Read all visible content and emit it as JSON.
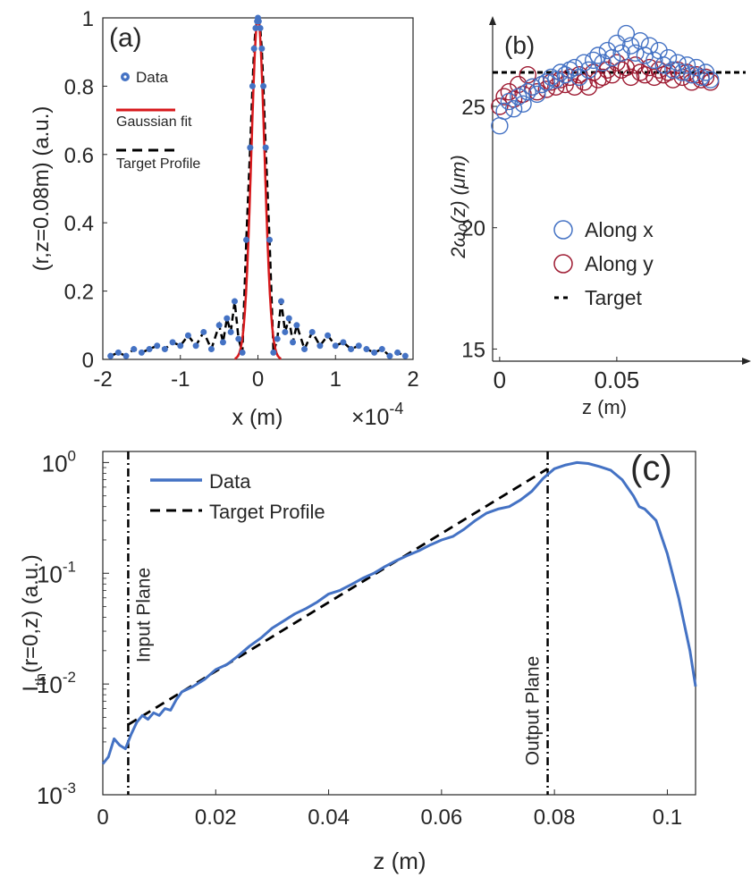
{
  "chart_data": [
    {
      "panel_label": "(a)",
      "type": "line",
      "xlabel": "x (m)",
      "x_exponent_label": "×10",
      "x_exponent": "-4",
      "ylabel": "(r,z=0.08m) (a.u.)",
      "xlim": [
        -2,
        2
      ],
      "ylim": [
        0,
        1
      ],
      "xticks": [
        "-2",
        "-1",
        "0",
        "1",
        "2"
      ],
      "yticks": [
        "0",
        "0.2",
        "0.4",
        "0.6",
        "0.8",
        "1"
      ],
      "legend": [
        "Data",
        "Gaussian fit",
        "Target Profile"
      ],
      "legend_position": "top-left",
      "series": [
        {
          "name": "Data",
          "style": "circle-markers",
          "color": "#4472C4",
          "x": [
            -1.9,
            -1.8,
            -1.7,
            -1.6,
            -1.5,
            -1.4,
            -1.3,
            -1.2,
            -1.1,
            -1.0,
            -0.9,
            -0.8,
            -0.7,
            -0.6,
            -0.5,
            -0.45,
            -0.4,
            -0.35,
            -0.3,
            -0.25,
            -0.2,
            -0.15,
            -0.1,
            -0.07,
            -0.05,
            -0.03,
            -0.01,
            0,
            0.01,
            0.03,
            0.05,
            0.07,
            0.1,
            0.15,
            0.2,
            0.25,
            0.3,
            0.35,
            0.4,
            0.45,
            0.5,
            0.6,
            0.7,
            0.8,
            0.9,
            1.0,
            1.1,
            1.2,
            1.3,
            1.4,
            1.5,
            1.6,
            1.7,
            1.8,
            1.9
          ],
          "y": [
            0.01,
            0.02,
            0.01,
            0.03,
            0.02,
            0.03,
            0.04,
            0.03,
            0.05,
            0.04,
            0.07,
            0.04,
            0.08,
            0.03,
            0.1,
            0.05,
            0.12,
            0.08,
            0.17,
            0.06,
            0.02,
            0.35,
            0.62,
            0.8,
            0.91,
            0.97,
            0.99,
            1.0,
            0.99,
            0.97,
            0.91,
            0.8,
            0.62,
            0.35,
            0.02,
            0.06,
            0.17,
            0.08,
            0.12,
            0.05,
            0.1,
            0.03,
            0.08,
            0.04,
            0.07,
            0.04,
            0.05,
            0.03,
            0.04,
            0.03,
            0.02,
            0.03,
            0.01,
            0.02,
            0.01
          ]
        },
        {
          "name": "Gaussian fit",
          "style": "solid",
          "color": "#D7191C"
        },
        {
          "name": "Target Profile",
          "style": "dashed",
          "color": "#000000"
        }
      ]
    },
    {
      "panel_label": "(b)",
      "type": "scatter",
      "xlabel": "z (m)",
      "ylabel": "2ω₀(z) (μm)",
      "xlim": [
        -0.003,
        0.105
      ],
      "ylim": [
        14.5,
        28.5
      ],
      "xticks": [
        "0",
        "0.05"
      ],
      "yticks": [
        "15",
        "20",
        "25"
      ],
      "legend": [
        "Along x",
        "Along y",
        "Target"
      ],
      "legend_position": "lower-left",
      "series": [
        {
          "name": "Along x",
          "style": "open-circle",
          "color": "#4472C4",
          "x": [
            0.0,
            0.002,
            0.004,
            0.006,
            0.008,
            0.01,
            0.012,
            0.014,
            0.016,
            0.018,
            0.02,
            0.022,
            0.024,
            0.026,
            0.028,
            0.03,
            0.032,
            0.034,
            0.036,
            0.038,
            0.04,
            0.042,
            0.044,
            0.046,
            0.048,
            0.05,
            0.052,
            0.054,
            0.056,
            0.058,
            0.06,
            0.062,
            0.064,
            0.066,
            0.068,
            0.07,
            0.072,
            0.074,
            0.076,
            0.078,
            0.08,
            0.082,
            0.084,
            0.086,
            0.088,
            0.09
          ],
          "y": [
            24.2,
            24.8,
            25.2,
            24.9,
            25.4,
            25.1,
            25.6,
            25.8,
            25.5,
            25.9,
            26.0,
            26.2,
            26.1,
            26.4,
            26.3,
            26.5,
            26.6,
            26.2,
            26.8,
            26.5,
            26.9,
            27.1,
            26.8,
            27.3,
            27.0,
            27.6,
            27.2,
            28.0,
            27.5,
            27.2,
            27.7,
            27.1,
            27.5,
            26.9,
            27.3,
            26.7,
            27.0,
            26.5,
            26.8,
            26.4,
            26.7,
            26.3,
            26.6,
            26.2,
            26.4,
            26.1
          ]
        },
        {
          "name": "Along y",
          "style": "open-circle",
          "color": "#9E1B32",
          "x": [
            0.0,
            0.002,
            0.004,
            0.006,
            0.008,
            0.01,
            0.012,
            0.014,
            0.016,
            0.018,
            0.02,
            0.022,
            0.024,
            0.026,
            0.028,
            0.03,
            0.032,
            0.034,
            0.036,
            0.038,
            0.04,
            0.042,
            0.044,
            0.046,
            0.048,
            0.05,
            0.052,
            0.054,
            0.056,
            0.058,
            0.06,
            0.062,
            0.064,
            0.066,
            0.068,
            0.07,
            0.072,
            0.074,
            0.076,
            0.078,
            0.08,
            0.082,
            0.084,
            0.086,
            0.088,
            0.09
          ],
          "y": [
            25.0,
            25.4,
            25.6,
            25.3,
            25.9,
            25.5,
            26.3,
            25.8,
            25.6,
            25.9,
            25.7,
            26.0,
            25.8,
            26.1,
            25.9,
            26.2,
            25.8,
            26.3,
            26.0,
            25.8,
            26.4,
            26.1,
            26.2,
            26.5,
            26.3,
            26.8,
            26.5,
            26.6,
            26.2,
            26.7,
            26.4,
            26.3,
            26.6,
            26.2,
            26.5,
            26.3,
            26.4,
            26.1,
            26.5,
            26.2,
            26.4,
            26.0,
            26.3,
            26.1,
            26.2,
            26.0
          ]
        },
        {
          "name": "Target",
          "style": "dotted",
          "color": "#000000",
          "y": 26.4
        }
      ]
    },
    {
      "panel_label": "(c)",
      "type": "line",
      "xlabel": "z (m)",
      "ylabel_main": "I",
      "ylabel_sub": "th",
      "ylabel_rest": "(r=0,z) (a.u.)",
      "xlim": [
        0,
        0.105
      ],
      "ylim_log10": [
        -3,
        0.1
      ],
      "yscale": "log",
      "xticks": [
        "0",
        "0.02",
        "0.04",
        "0.06",
        "0.08",
        "0.1"
      ],
      "yticks": [
        {
          "base": "10",
          "exp": "-3"
        },
        {
          "base": "10",
          "exp": "-2"
        },
        {
          "base": "10",
          "exp": "-1"
        },
        {
          "base": "10",
          "exp": "0"
        }
      ],
      "legend": [
        "Data",
        "Target Profile"
      ],
      "legend_position": "top-left",
      "annotations": [
        "Input Plane",
        "Output Plane"
      ],
      "input_plane_z": 0.0045,
      "output_plane_z": 0.0788,
      "series": [
        {
          "name": "Data",
          "style": "solid",
          "color": "#4472C4",
          "x": [
            0,
            0.001,
            0.002,
            0.003,
            0.004,
            0.005,
            0.006,
            0.007,
            0.008,
            0.009,
            0.01,
            0.011,
            0.012,
            0.013,
            0.014,
            0.016,
            0.018,
            0.02,
            0.022,
            0.024,
            0.026,
            0.028,
            0.03,
            0.032,
            0.034,
            0.036,
            0.038,
            0.04,
            0.042,
            0.044,
            0.046,
            0.048,
            0.05,
            0.052,
            0.054,
            0.056,
            0.058,
            0.06,
            0.062,
            0.064,
            0.066,
            0.068,
            0.07,
            0.072,
            0.074,
            0.076,
            0.078,
            0.08,
            0.082,
            0.084,
            0.086,
            0.088,
            0.09,
            0.092,
            0.094,
            0.095,
            0.096,
            0.098,
            0.1,
            0.102,
            0.104,
            0.105
          ],
          "y": [
            0.0019,
            0.0022,
            0.0032,
            0.0028,
            0.0026,
            0.0035,
            0.0045,
            0.0052,
            0.0048,
            0.0055,
            0.0052,
            0.006,
            0.0058,
            0.0072,
            0.0085,
            0.0095,
            0.011,
            0.0135,
            0.015,
            0.018,
            0.022,
            0.026,
            0.032,
            0.037,
            0.043,
            0.048,
            0.055,
            0.065,
            0.07,
            0.079,
            0.09,
            0.1,
            0.115,
            0.13,
            0.145,
            0.16,
            0.18,
            0.2,
            0.215,
            0.25,
            0.3,
            0.35,
            0.38,
            0.4,
            0.46,
            0.55,
            0.72,
            0.88,
            0.95,
            1.0,
            0.98,
            0.92,
            0.85,
            0.7,
            0.5,
            0.4,
            0.38,
            0.3,
            0.15,
            0.06,
            0.02,
            0.0095
          ]
        },
        {
          "name": "Target Profile",
          "style": "dashed",
          "color": "#000000",
          "x": [
            0.0045,
            0.0788
          ],
          "y": [
            0.0043,
            0.88
          ]
        }
      ]
    }
  ]
}
